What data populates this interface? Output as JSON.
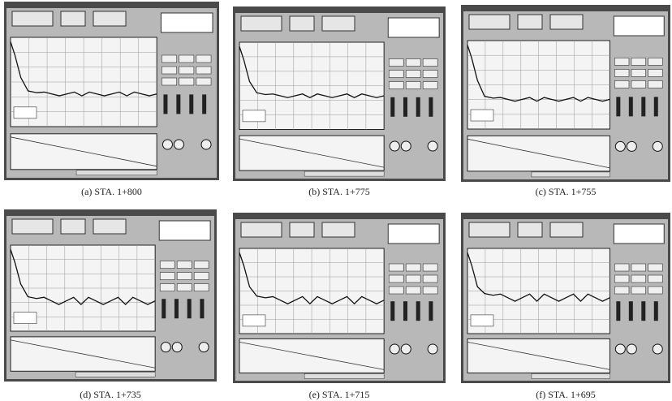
{
  "figure": {
    "captions": [
      "(a) STA. 1+800",
      "(b) STA. 1+775",
      "(c) STA. 1+755",
      "(d) STA. 1+735",
      "(e) STA. 1+715",
      "(f) STA. 1+695"
    ]
  }
}
